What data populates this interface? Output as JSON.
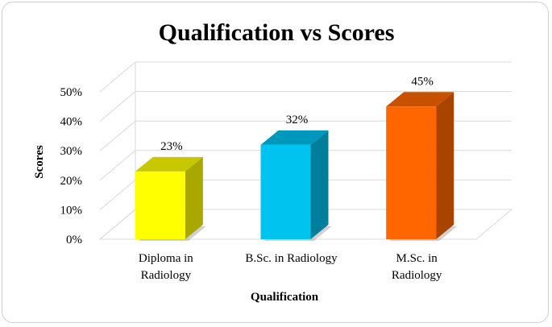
{
  "chart_data": {
    "type": "bar",
    "title": "Qualification vs Scores",
    "xlabel": "Qualification",
    "ylabel": "Scores",
    "categories": [
      [
        "Diploma in",
        "Radiology"
      ],
      [
        "B.Sc. in Radiology"
      ],
      [
        "M.Sc. in",
        "Radiology"
      ]
    ],
    "values": [
      23,
      32,
      45
    ],
    "data_labels": [
      "23%",
      "32%",
      "45%"
    ],
    "y_ticks": [
      0,
      10,
      20,
      30,
      40,
      50
    ],
    "y_tick_labels": [
      "0%",
      "10%",
      "20%",
      "30%",
      "40%",
      "50%"
    ],
    "ylim": [
      0,
      50
    ],
    "grid": true,
    "legend": "none",
    "style": "3d-column",
    "colors": {
      "front": [
        "#FFFF00",
        "#00C4F0",
        "#FF6600"
      ],
      "side": [
        "#A8A800",
        "#007E9C",
        "#A84300"
      ],
      "top": [
        "#C8C800",
        "#0097BC",
        "#C85100"
      ]
    }
  }
}
